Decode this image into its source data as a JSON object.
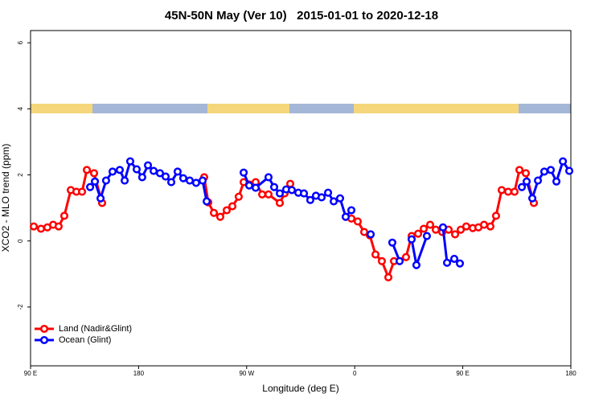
{
  "chart_data": {
    "type": "line",
    "title": "45N-50N May (Ver 10)   2015-01-01 to 2020-12-18",
    "xlabel": "Longitude (deg E)",
    "ylabel": "XCO2 - MLO trend (ppm)",
    "xlim": [
      90,
      540
    ],
    "xticks": [
      {
        "value": 90,
        "label": "90 E"
      },
      180,
      {
        "value": 270,
        "label": "90 W"
      },
      {
        "value": 360,
        "label": "0"
      },
      {
        "value": 450,
        "label": "90 E"
      },
      {
        "value": 540,
        "label": "180"
      }
    ],
    "ylim": [
      -3.78,
      6.37
    ],
    "yticks": [
      -2,
      0,
      2,
      4,
      6
    ],
    "legend": "bottomleft",
    "series": [
      {
        "name": "Land (Nadir&Glint)",
        "color": "#ff0000",
        "x": [
          92.7,
          98.7,
          104,
          108.8,
          113.4,
          118.1,
          123.5,
          128.2,
          132.9,
          136.9,
          142.9,
          149.6,
          null,
          234.6,
          238,
          242.7,
          248,
          253.4,
          258.1,
          263.4,
          267.5,
          272.1,
          277.5,
          282.9,
          288.2,
          297.6,
          301.6,
          306.3,
          null,
          352.5,
          357.2,
          362.5,
          367.9,
          372.6,
          377.3,
          382.6,
          388,
          392.7,
          402.7,
          407.4,
          412.8,
          417.5,
          422.8,
          427.5,
          432.9,
          438.2,
          443.6,
          448.3,
          452.9,
          458.3,
          463,
          467.7,
          473,
          477.7,
          482.4,
          487.8,
          493.1,
          497.2,
          502.5,
          509.2
        ],
        "values": [
          0.44,
          0.37,
          0.41,
          0.49,
          0.44,
          0.76,
          1.54,
          1.49,
          1.49,
          2.15,
          2.05,
          1.15,
          null,
          1.93,
          1.17,
          0.85,
          0.73,
          0.93,
          1.05,
          1.34,
          1.78,
          1.71,
          1.78,
          1.41,
          1.41,
          1.15,
          1.44,
          1.73,
          null,
          0.73,
          0.68,
          0.59,
          0.27,
          0.17,
          -0.41,
          -0.61,
          -1.1,
          -0.61,
          -0.49,
          0.15,
          0.22,
          0.37,
          0.49,
          0.34,
          0.27,
          0.34,
          0.2,
          0.34,
          0.44,
          0.39,
          0.41,
          0.49,
          0.44,
          0.76,
          1.54,
          1.49,
          1.49,
          2.15,
          2.05,
          1.15
        ]
      },
      {
        "name": "Ocean (Glint)",
        "color": "#0000ff",
        "x": [
          139.6,
          143.6,
          148.3,
          152.9,
          158.3,
          164.3,
          168.4,
          173,
          178.4,
          183,
          187.8,
          192.5,
          197.8,
          202.5,
          207.2,
          212.5,
          217.2,
          222.6,
          227.9,
          233.3,
          236.7,
          null,
          267.5,
          272.1,
          277.5,
          288.2,
          292.9,
          297.6,
          302.9,
          307.6,
          313,
          317.7,
          323,
          327.7,
          332.4,
          337.8,
          342.5,
          347.8,
          352.5,
          357.2,
          null,
          373.3,
          null,
          391.3,
          397.4,
          null,
          407.4,
          411.4,
          420.1,
          null,
          433.5,
          436.9,
          442.9,
          447.6,
          null,
          499.2,
          503.2,
          507.9,
          512.6,
          517.9,
          523.3,
          528,
          533.4,
          538.7
        ],
        "values": [
          1.63,
          1.8,
          1.29,
          1.83,
          2.1,
          2.15,
          1.83,
          2.41,
          2.17,
          1.93,
          2.29,
          2.12,
          2.05,
          1.95,
          1.78,
          2.1,
          1.9,
          1.83,
          1.76,
          1.83,
          1.2,
          null,
          2.07,
          1.68,
          1.61,
          1.93,
          1.63,
          1.44,
          1.56,
          1.54,
          1.46,
          1.44,
          1.24,
          1.37,
          1.32,
          1.46,
          1.2,
          1.29,
          0.73,
          0.93,
          null,
          0.2,
          null,
          -0.05,
          -0.61,
          null,
          0.05,
          -0.73,
          0.15,
          null,
          0.41,
          -0.66,
          -0.54,
          -0.68,
          null,
          1.63,
          1.8,
          1.29,
          1.83,
          2.1,
          2.15,
          1.8,
          2.41,
          2.12
        ]
      }
    ]
  }
}
